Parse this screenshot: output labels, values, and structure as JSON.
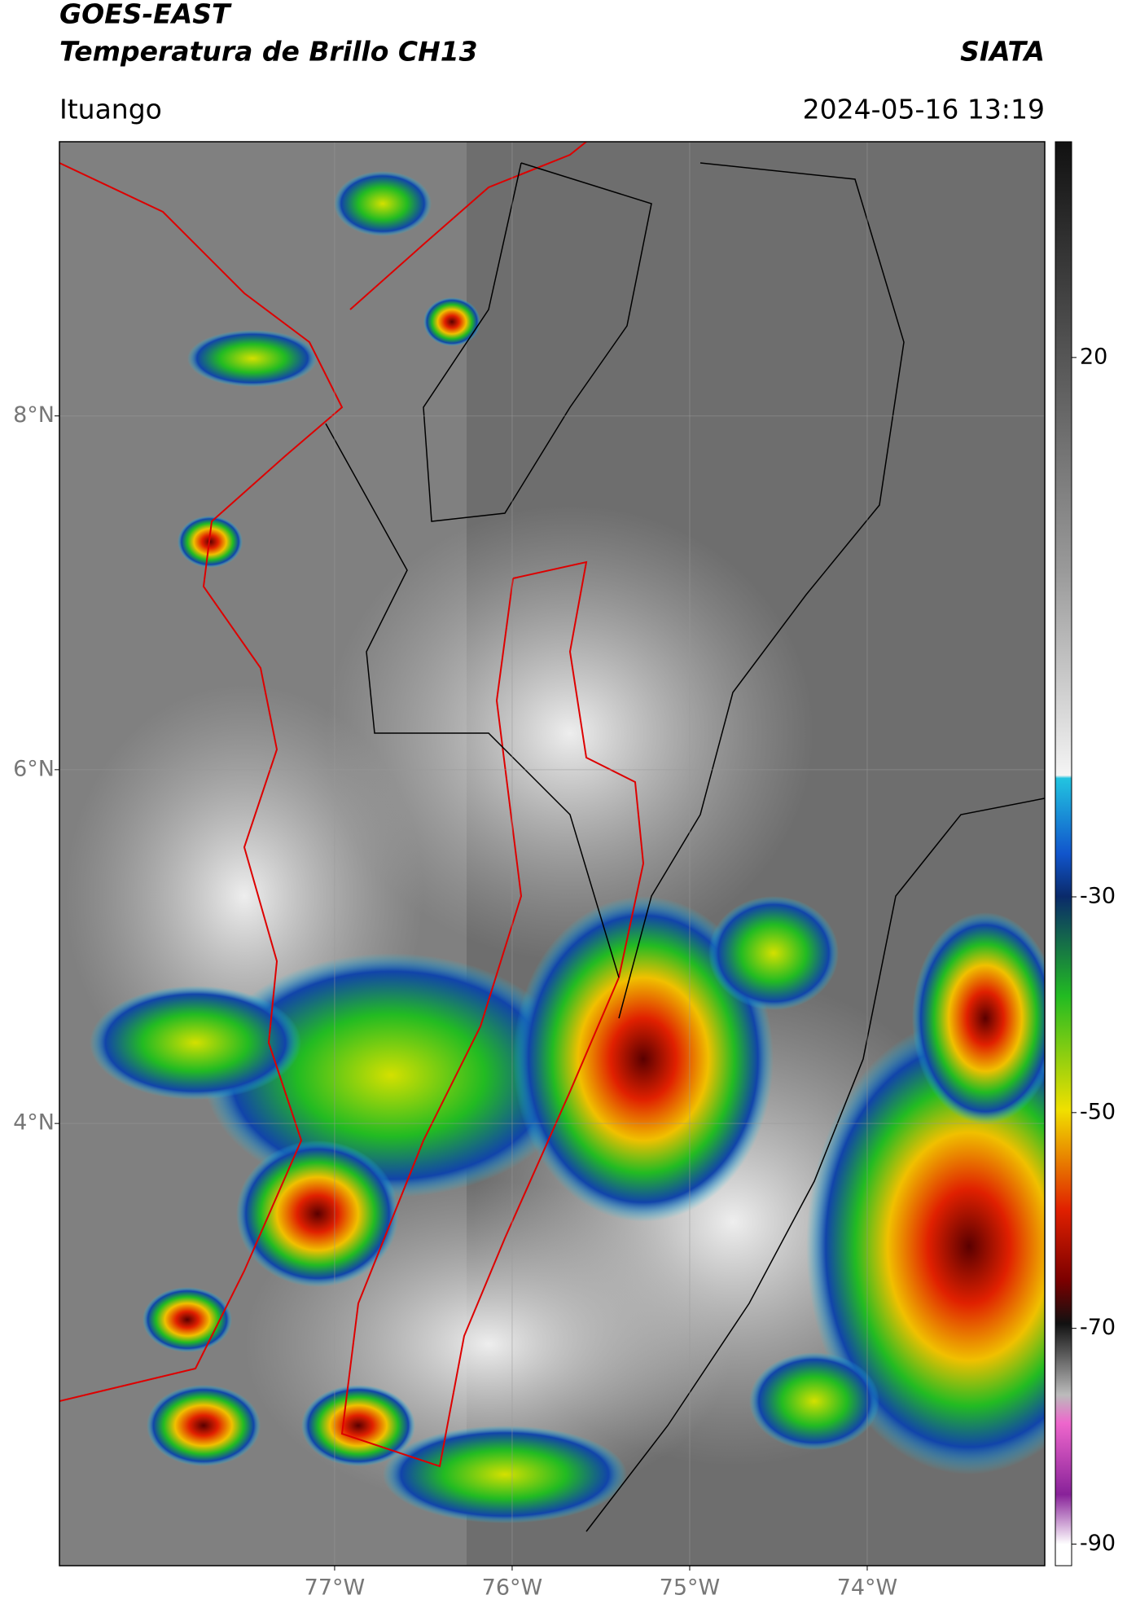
{
  "chart_data": {
    "type": "map",
    "title": "GOES-EAST",
    "subtitle": "Temperatura de Brillo CH13",
    "source": "SIATA",
    "location": "Ituango",
    "datetime": "2024-05-16 13:19",
    "xlim": [
      -78.55,
      -73.0
    ],
    "ylim": [
      1.5,
      9.55
    ],
    "xticks": [
      {
        "value": -77,
        "label": "77°W"
      },
      {
        "value": -76,
        "label": "76°W"
      },
      {
        "value": -75,
        "label": "75°W"
      },
      {
        "value": -74,
        "label": "74°W"
      }
    ],
    "yticks": [
      {
        "value": 8,
        "label": "8°N"
      },
      {
        "value": 6,
        "label": "6°N"
      },
      {
        "value": 4,
        "label": "4°N"
      }
    ],
    "colorbar_lim": [
      -92,
      40
    ],
    "colorbar_ticks": [
      20,
      -30,
      -50,
      -70,
      -90
    ],
    "grid": true
  }
}
